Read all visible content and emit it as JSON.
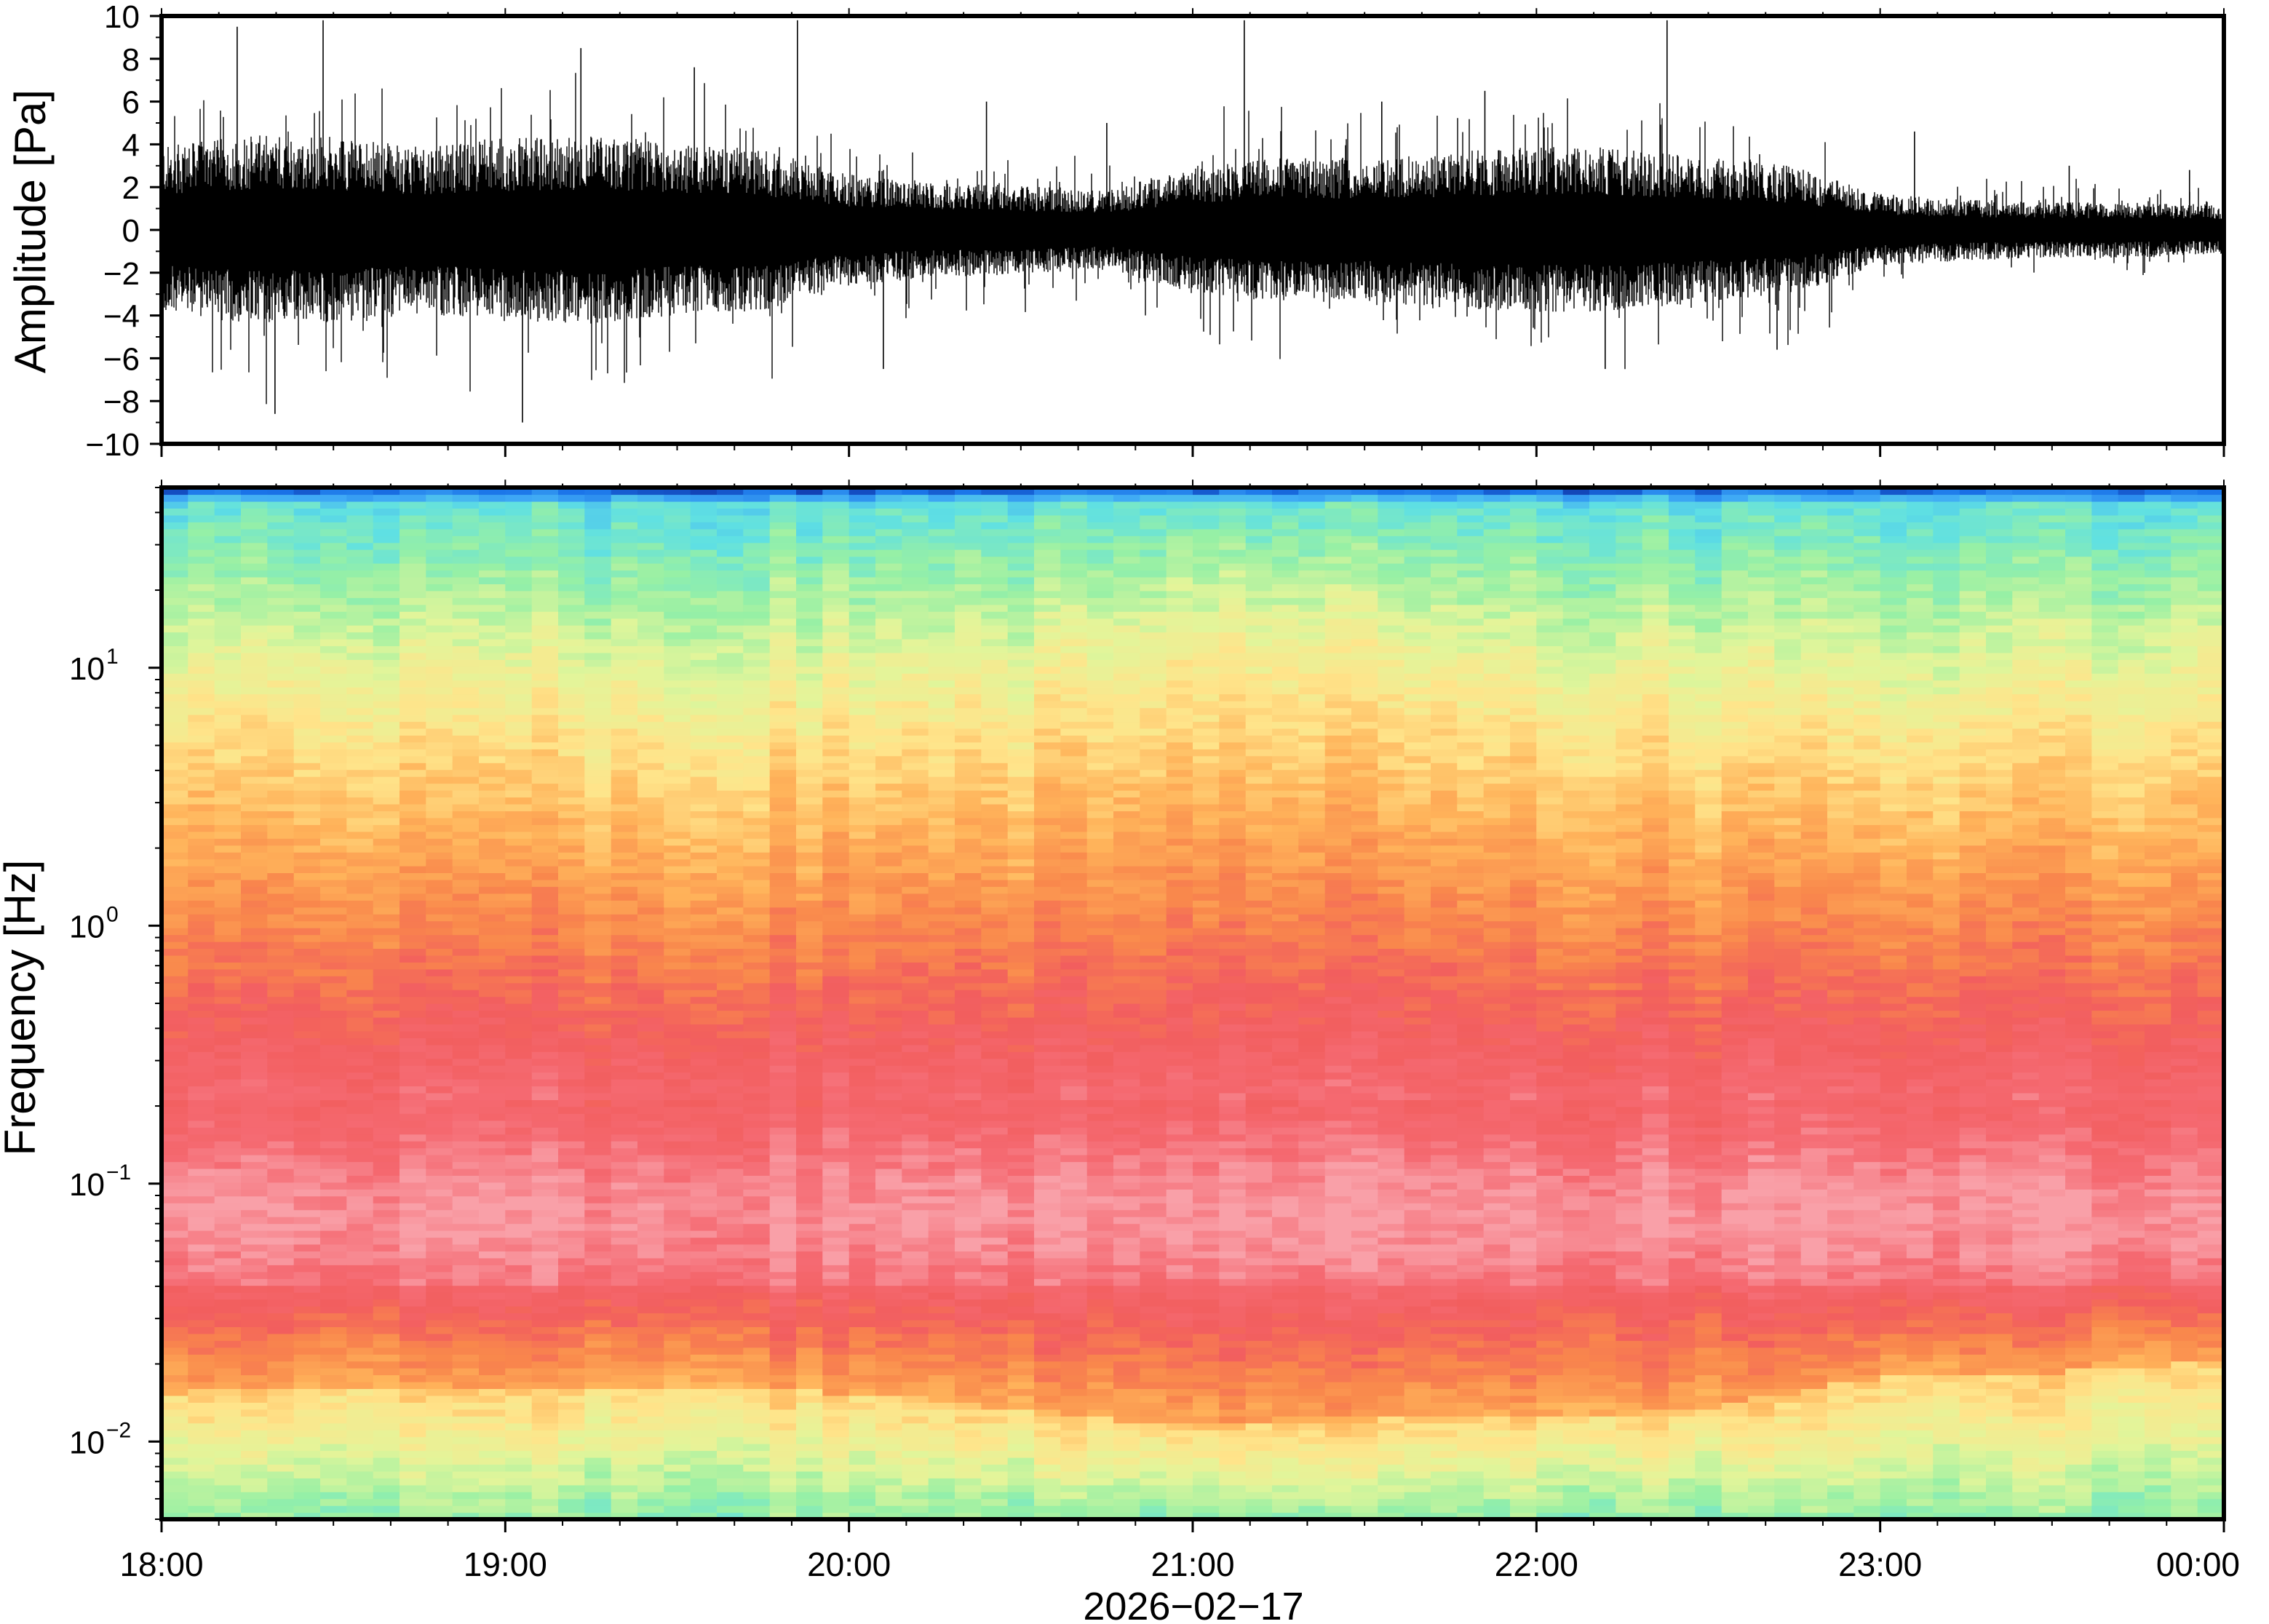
{
  "chart_data": [
    {
      "type": "line",
      "ylabel": "Amplitude [Pa]",
      "ylim": [
        -10,
        10
      ],
      "y_ticks": [
        -10,
        -8,
        -6,
        -4,
        -2,
        0,
        2,
        4,
        6,
        8,
        10
      ],
      "y_tick_labels": [
        "−10",
        "−8",
        "−6",
        "−4",
        "−2",
        "0",
        "2",
        "4",
        "6",
        "8",
        "10"
      ],
      "series": [
        {
          "color": "#000000",
          "envelope_hours": [
            18.0,
            18.25,
            18.5,
            18.75,
            19.0,
            19.25,
            19.5,
            19.75,
            20.0,
            20.25,
            20.5,
            20.75,
            21.0,
            21.25,
            21.5,
            21.75,
            22.0,
            22.25,
            22.5,
            22.75,
            23.0,
            23.25,
            23.5,
            23.75,
            24.0
          ],
          "envelope_pa": [
            3.0,
            3.4,
            3.4,
            3.0,
            3.3,
            3.4,
            3.1,
            2.9,
            2.0,
            1.7,
            1.6,
            1.4,
            2.3,
            2.6,
            2.6,
            2.8,
            3.0,
            2.9,
            2.6,
            2.3,
            1.3,
            1.1,
            1.0,
            1.0,
            0.9
          ],
          "spike_hours": [
            18.22,
            18.33,
            18.47,
            19.05,
            19.22,
            19.55,
            19.85,
            20.1,
            20.4,
            20.75,
            21.15,
            21.55,
            21.85,
            22.2,
            22.38,
            22.7,
            23.1,
            23.55,
            23.9
          ],
          "spike_pa": [
            9.5,
            -8.6,
            9.8,
            -9.0,
            8.5,
            7.6,
            9.8,
            -6.5,
            6.0,
            5.0,
            9.8,
            6.0,
            6.5,
            -6.5,
            9.8,
            -5.6,
            4.6,
            3.0,
            2.8
          ]
        }
      ]
    },
    {
      "type": "heatmap",
      "xlabel": "2026−02−17",
      "ylabel": "Frequency [Hz]",
      "x_ticks_hours": [
        18,
        19,
        20,
        21,
        22,
        23,
        24
      ],
      "x_tick_labels": [
        "18:00",
        "19:00",
        "20:00",
        "21:00",
        "22:00",
        "23:00",
        "00:00"
      ],
      "y_scale": "log",
      "ylim": [
        0.005,
        50
      ],
      "y_ticks": [
        0.01,
        0.1,
        1,
        10
      ],
      "y_tick_labels": [
        {
          "base": "10",
          "exp": "−2"
        },
        {
          "base": "10",
          "exp": "−1"
        },
        {
          "base": "10",
          "exp": "0"
        },
        {
          "base": "10",
          "exp": "1"
        }
      ],
      "colormap": [
        "#0a0a7a",
        "#1a73e8",
        "#3fa9f5",
        "#5fe0e3",
        "#97f0a5",
        "#e2f59a",
        "#ffe48a",
        "#ffb35a",
        "#f9884c",
        "#f25e5e",
        "#f56a72",
        "#f9a0a8"
      ],
      "time_hours": [
        18.0,
        18.5,
        19.0,
        19.5,
        20.0,
        20.5,
        21.0,
        21.5,
        22.0,
        22.5,
        23.0,
        23.5,
        24.0
      ],
      "low_frequency_band_top_hz": [
        0.015,
        0.016,
        0.016,
        0.016,
        0.015,
        0.013,
        0.011,
        0.012,
        0.012,
        0.013,
        0.017,
        0.018,
        0.02
      ],
      "high_frequency_band_bottom_hz": [
        10,
        10,
        9,
        9,
        9,
        10,
        14,
        12,
        10,
        9,
        8,
        9,
        11
      ],
      "pink_energy_band_hz": [
        0.04,
        0.2
      ]
    }
  ]
}
